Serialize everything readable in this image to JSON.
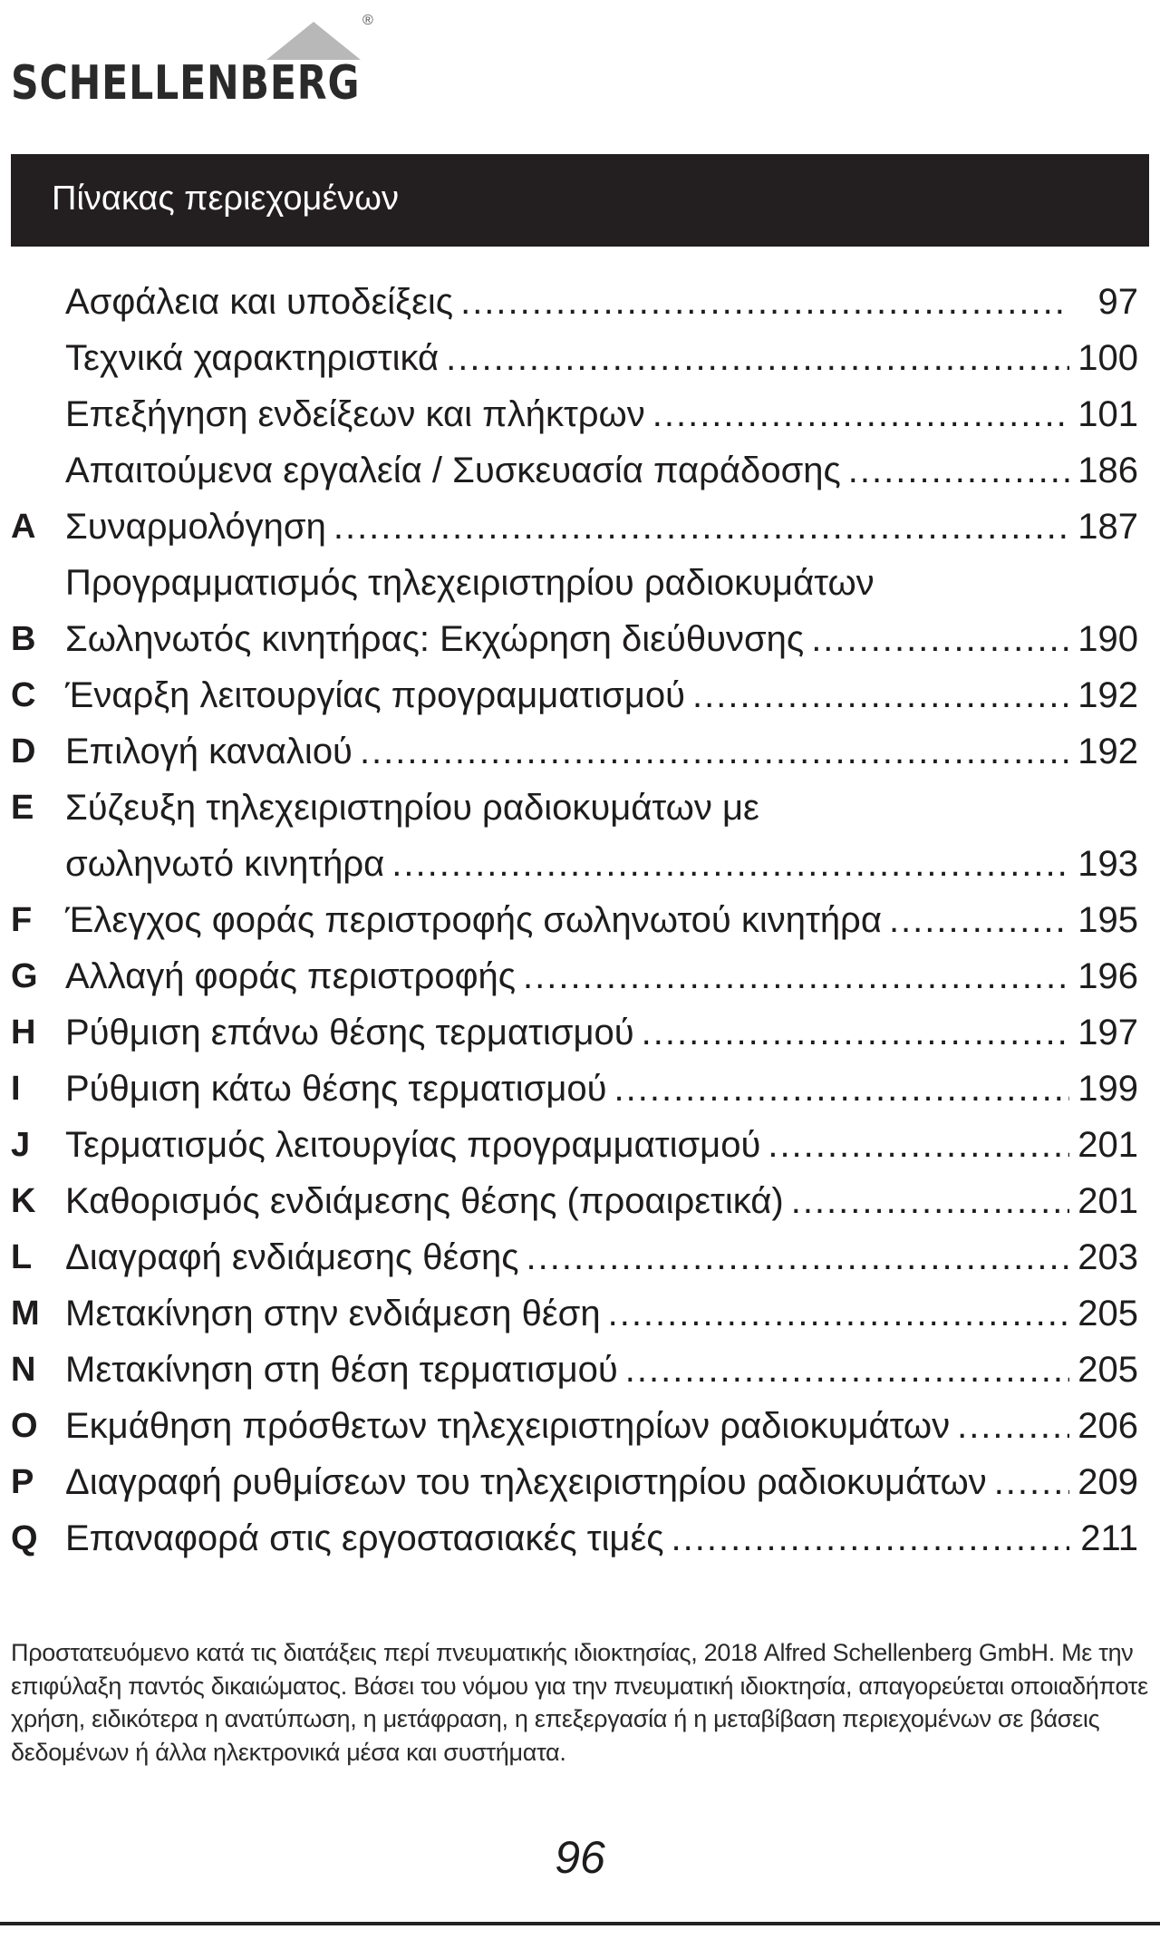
{
  "logo": {
    "text": "SCHELLENBERG",
    "registered": "®"
  },
  "header": {
    "title": "Πίνακας περιεχομένων"
  },
  "toc": [
    {
      "letter": "",
      "title": "Ασφάλεια και υποδείξεις",
      "page": "97"
    },
    {
      "letter": "",
      "title": "Τεχνικά χαρακτηριστικά",
      "page": "100"
    },
    {
      "letter": "",
      "title": "Επεξήγηση ενδείξεων και πλήκτρων",
      "page": "101"
    },
    {
      "letter": "",
      "title": "Απαιτούμενα εργαλεία / Συσκευασία παράδοσης",
      "page": "186"
    },
    {
      "letter": "A",
      "title": "Συναρμολόγηση",
      "page": "187"
    },
    {
      "letter": "",
      "title": "Προγραμματισμός τηλεχειριστηρίου ραδιοκυμάτων",
      "page": ""
    },
    {
      "letter": "B",
      "title": "Σωληνωτός κινητήρας: Εκχώρηση διεύθυνσης",
      "page": "190"
    },
    {
      "letter": "C",
      "title": "Έναρξη λειτουργίας προγραμματισμού",
      "page": "192"
    },
    {
      "letter": "D",
      "title": "Επιλογή καναλιού",
      "page": "192"
    },
    {
      "letter": "E",
      "title": "Σύζευξη τηλεχειριστηρίου ραδιοκυμάτων με",
      "page": ""
    },
    {
      "letter": "",
      "title": "σωληνωτό κινητήρα",
      "page": "193"
    },
    {
      "letter": "F",
      "title": "Έλεγχος φοράς περιστροφής σωληνωτού κινητήρα",
      "page": "195"
    },
    {
      "letter": "G",
      "title": "Αλλαγή φοράς περιστροφής",
      "page": "196"
    },
    {
      "letter": "H",
      "title": "Ρύθμιση επάνω θέσης τερματισμού",
      "page": "197"
    },
    {
      "letter": "I",
      "title": "Ρύθμιση κάτω θέσης τερματισμού",
      "page": "199"
    },
    {
      "letter": "J",
      "title": "Τερματισμός λειτουργίας προγραμματισμού",
      "page": "201"
    },
    {
      "letter": "K",
      "title": "Καθορισμός ενδιάμεσης θέσης (προαιρετικά)",
      "page": "201"
    },
    {
      "letter": "L",
      "title": "Διαγραφή ενδιάμεσης θέσης",
      "page": "203"
    },
    {
      "letter": "M",
      "title": "Μετακίνηση στην ενδιάμεση θέση",
      "page": "205"
    },
    {
      "letter": "N",
      "title": "Μετακίνηση στη θέση τερματισμού",
      "page": "205"
    },
    {
      "letter": "O",
      "title": "Εκμάθηση πρόσθετων τηλεχειριστηρίων ραδιοκυμάτων",
      "page": "206"
    },
    {
      "letter": "P",
      "title": "Διαγραφή ρυθμίσεων του τηλεχειριστηρίου ραδιοκυμάτων",
      "page": "209"
    },
    {
      "letter": "Q",
      "title": "Επαναφορά στις εργοστασιακές τιμές",
      "page": "211"
    }
  ],
  "footer": {
    "copyright": "Προστατευόμενο κατά τις διατάξεις περί πνευματικής ιδιοκτησίας, 2018 Alfred Schellenberg GmbH. Με την επιφύλαξη παντός δικαιώματος. Βάσει του νόμου για την πνευματική ιδιοκτησία, απαγορεύεται οποιαδήποτε χρήση, ειδικότερα η ανατύπωση, η μετάφραση, η επεξεργασία ή η μεταβίβαση περιεχομένων σε βάσεις δεδομένων ή άλλα ηλεκτρονικά μέσα και συστήματα.",
    "page_number": "96"
  }
}
